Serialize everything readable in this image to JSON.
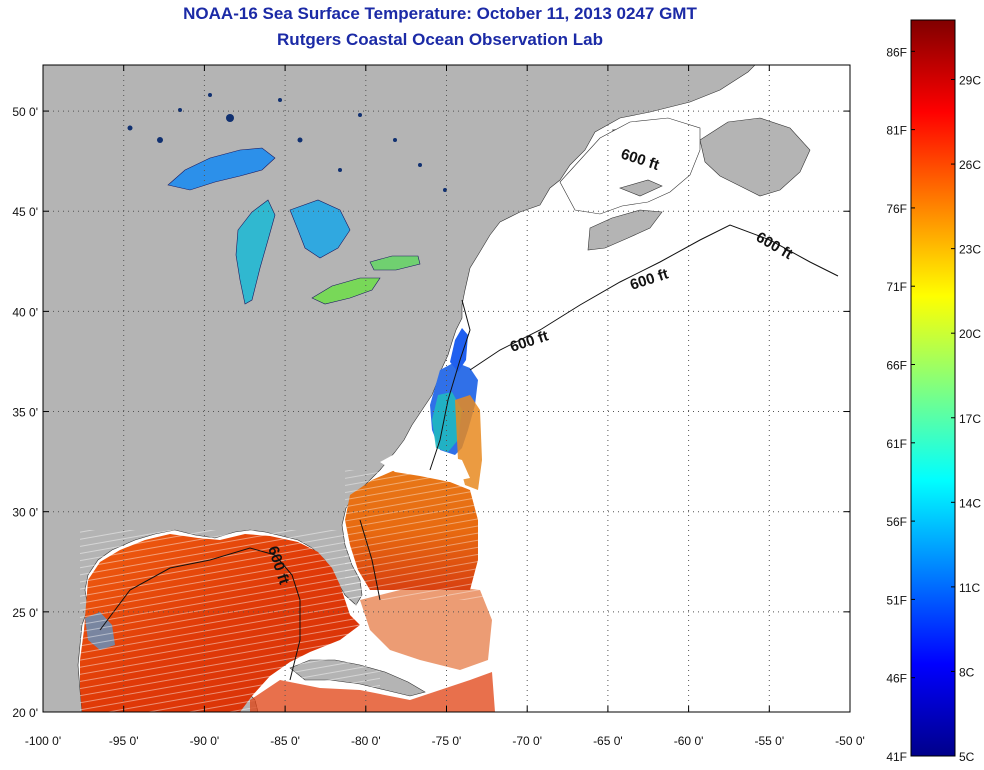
{
  "header": {
    "title": "NOAA-16 Sea Surface Temperature:  October 11, 2013 0247 GMT",
    "subtitle": "Rutgers Coastal Ocean Observation Lab"
  },
  "map": {
    "lon_ticks": [
      "-100 0'",
      "-95 0'",
      "-90 0'",
      "-85 0'",
      "-80 0'",
      "-75 0'",
      "-70 0'",
      "-65 0'",
      "-60 0'",
      "-55 0'",
      "-50 0'"
    ],
    "lat_ticks": [
      "20 0'",
      "25 0'",
      "30 0'",
      "35 0'",
      "40 0'",
      "45 0'",
      "50 0'"
    ],
    "contour_label": "600 ft",
    "colors": {
      "land": "#b4b4b4",
      "ocean_nodata": "#ffffff",
      "grid": "#555555"
    }
  },
  "colorbar": {
    "fahrenheit_labels": [
      "86F",
      "81F",
      "76F",
      "71F",
      "66F",
      "61F",
      "56F",
      "51F",
      "46F",
      "41F"
    ],
    "celsius_labels": [
      "29C",
      "26C",
      "23C",
      "20C",
      "17C",
      "14C",
      "11C",
      "8C",
      "5C"
    ],
    "range_f": [
      41,
      88
    ],
    "colors": [
      "#00008a",
      "#0000ff",
      "#0080ff",
      "#00ffff",
      "#80ff80",
      "#ffff00",
      "#ff8000",
      "#ff0000",
      "#800000"
    ]
  }
}
